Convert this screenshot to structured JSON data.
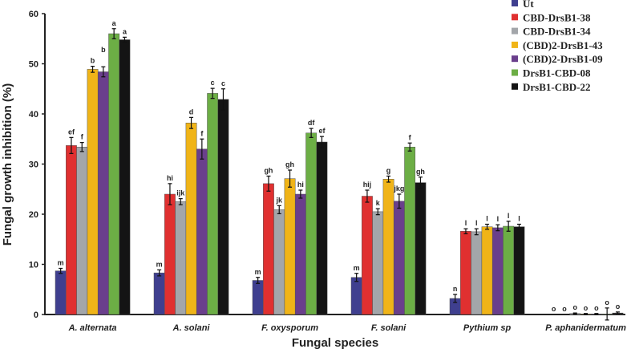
{
  "chart_data": {
    "type": "bar",
    "xlabel": "Fungal species",
    "ylabel": "Fungal growth inhibition (%)",
    "ylim": [
      0,
      60
    ],
    "yticks": [
      0,
      10,
      20,
      30,
      40,
      50,
      60
    ],
    "grid": false,
    "legend_placement": "top-right",
    "categories": [
      "A. alternata",
      "A. solani",
      "F. oxysporum",
      "F. solani",
      "Pythium sp",
      "P. aphanidermatum"
    ],
    "series": [
      {
        "name": "Ut",
        "color": "#3f3f8f",
        "values": [
          8.7,
          8.3,
          6.8,
          7.4,
          3.2,
          0
        ],
        "errors": [
          0.5,
          0.6,
          0.6,
          0.8,
          0.8,
          0
        ],
        "letters": [
          "m",
          "m",
          "m",
          "m",
          "n",
          "o"
        ]
      },
      {
        "name": "CBD-DrsB1-38",
        "color": "#e03030",
        "values": [
          33.7,
          24.0,
          26.1,
          23.6,
          16.6,
          0
        ],
        "errors": [
          1.6,
          2.1,
          1.5,
          1.2,
          0.5,
          0
        ],
        "letters": [
          "ef",
          "hi",
          "gh",
          "hij",
          "l",
          "o"
        ]
      },
      {
        "name": "CBD-DrsB1-34",
        "color": "#a3a6aa",
        "values": [
          33.4,
          22.5,
          20.9,
          20.5,
          16.5,
          0.2
        ],
        "errors": [
          0.9,
          0.6,
          0.8,
          0.6,
          0.6,
          0.1
        ],
        "letters": [
          "f",
          "ijk",
          "jk",
          "k",
          "l",
          "o"
        ]
      },
      {
        "name": "(CBD)2-DrsB1-43",
        "color": "#f0b418",
        "values": [
          48.9,
          38.2,
          27.1,
          27.0,
          17.5,
          0.1
        ],
        "errors": [
          0.6,
          1.1,
          1.7,
          0.6,
          0.5,
          0.1
        ],
        "letters": [
          "b",
          "d",
          "gh",
          "g",
          "l",
          "o"
        ]
      },
      {
        "name": "(CBD)2-DrsB1-09",
        "color": "#6a3f8c",
        "values": [
          48.4,
          33.0,
          24.0,
          22.6,
          17.3,
          0.1
        ],
        "errors": [
          1.0,
          2.0,
          0.8,
          1.4,
          0.6,
          0.1
        ],
        "letters": [
          "b",
          "f",
          "hi",
          "jkg",
          "l",
          "o"
        ]
      },
      {
        "name": "DrsB1-CBD-08",
        "color": "#6cae45",
        "values": [
          56.0,
          44.1,
          36.2,
          33.4,
          17.6,
          0.1
        ],
        "errors": [
          1.0,
          1.0,
          0.9,
          0.8,
          1.0,
          1.2
        ],
        "letters": [
          "a",
          "c",
          "df",
          "f",
          "l",
          "o"
        ]
      },
      {
        "name": "DrsB1-CBD-22",
        "color": "#141414",
        "values": [
          54.8,
          42.9,
          34.4,
          26.3,
          17.5,
          0.3
        ],
        "errors": [
          0.5,
          2.1,
          1.1,
          1.1,
          0.5,
          0.2
        ],
        "letters": [
          "a",
          "c",
          "ef",
          "gh",
          "l",
          "o"
        ]
      }
    ]
  }
}
